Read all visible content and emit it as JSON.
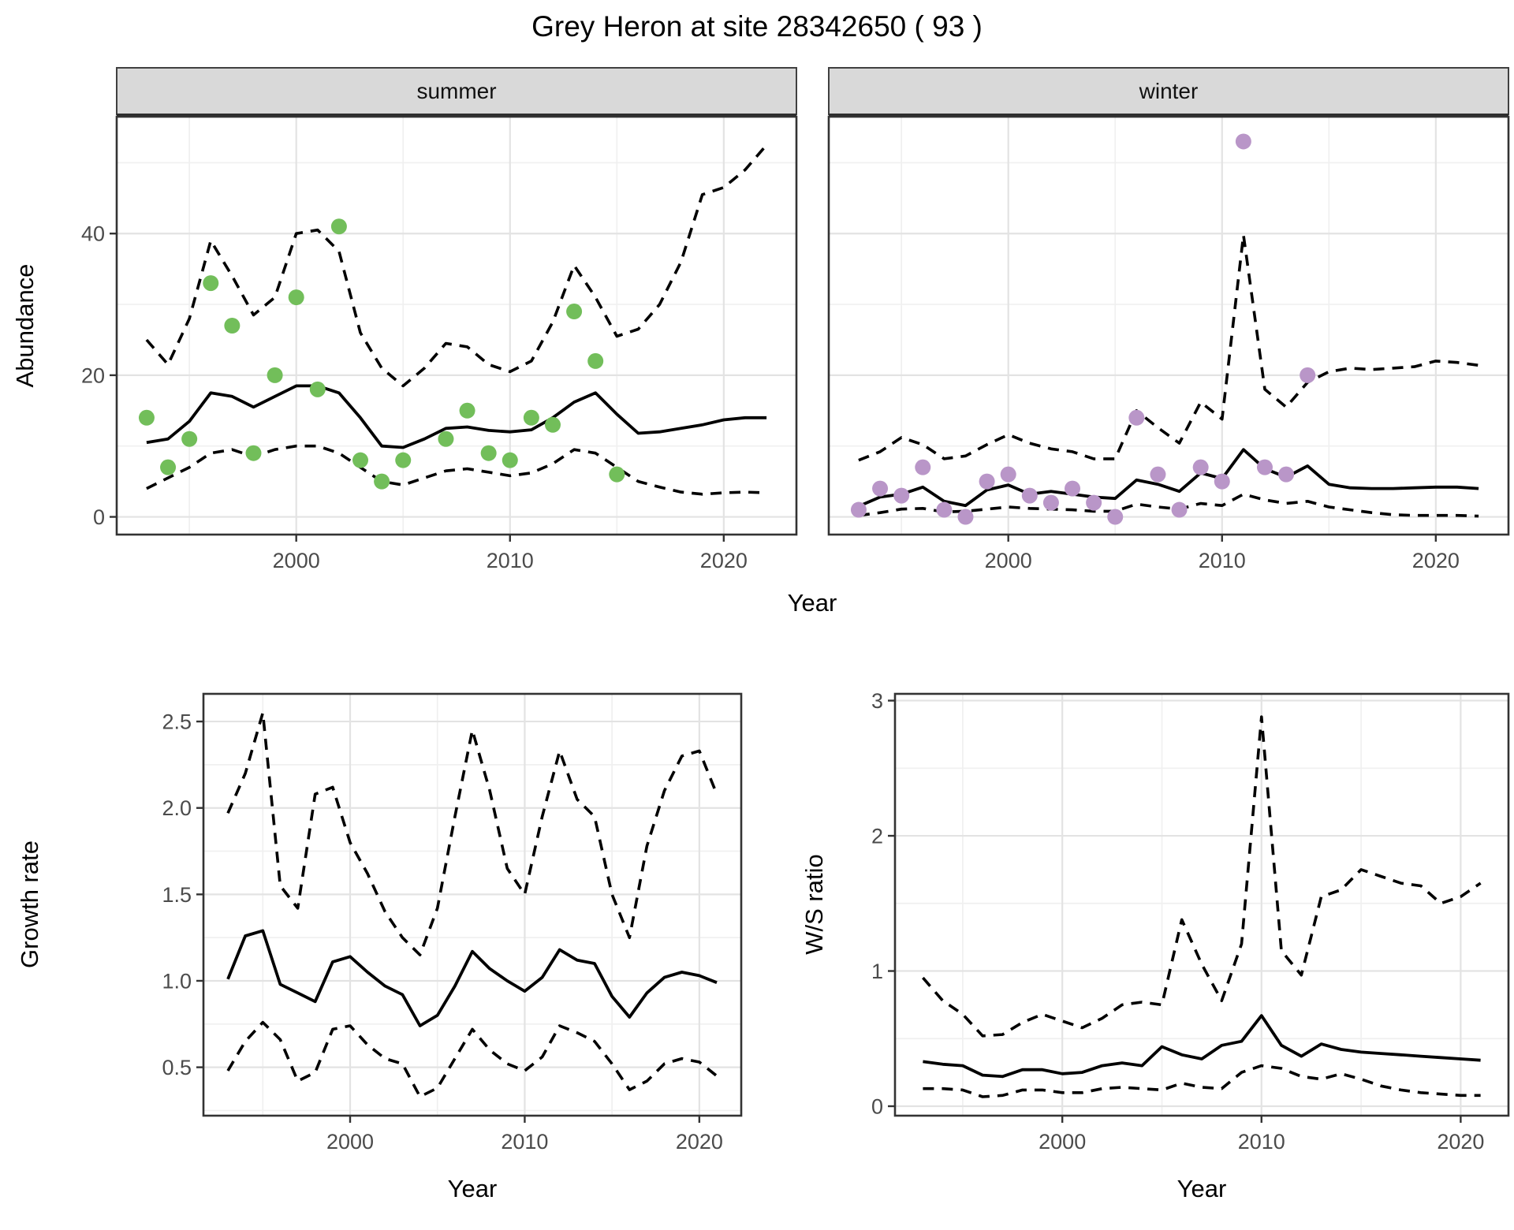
{
  "title": "Grey Heron at site 28342650 ( 93 )",
  "top_row": {
    "ylabel": "Abundance",
    "xlabel": "Year",
    "facets": [
      {
        "label": "summer"
      },
      {
        "label": "winter"
      }
    ]
  },
  "bottom_row": {
    "left": {
      "ylabel": "Growth rate",
      "xlabel": "Year"
    },
    "right": {
      "ylabel": "W/S ratio",
      "xlabel": "Year"
    }
  },
  "colors": {
    "summer_points": "#72BE5A",
    "winter_points": "#B996C8",
    "line": "#000000",
    "strip_bg": "#D9D9D9",
    "panel_border": "#333333",
    "grid_major": "#E3E3E3",
    "grid_minor": "#F0F0F0",
    "tick_text": "#4B4B4B"
  },
  "chart_data": [
    {
      "id": "abundance-summer",
      "type": "line+scatter",
      "facet": "summer",
      "xlim": [
        1991.6,
        2023.4
      ],
      "ylim": [
        -2.5,
        56.5
      ],
      "xticks": [
        2000,
        2010,
        2020
      ],
      "xticks_minor": [
        1995,
        2005,
        2015
      ],
      "yticks": [
        0,
        20,
        40
      ],
      "ytick_labels": [
        "0",
        "20",
        "40"
      ],
      "yticks_minor": [
        10,
        30,
        50
      ],
      "series": [
        {
          "name": "observed",
          "type": "scatter",
          "color": "#72BE5A",
          "years": [
            1993,
            1994,
            1995,
            1996,
            1997,
            1998,
            1999,
            2000,
            2001,
            2002,
            2003,
            2004,
            2005,
            2007,
            2008,
            2009,
            2010,
            2011,
            2012,
            2013,
            2014,
            2015
          ],
          "values": [
            14,
            7,
            11,
            33,
            27,
            9,
            20,
            31,
            18,
            41,
            8,
            5,
            8,
            11,
            15,
            9,
            8,
            14,
            13,
            29,
            22,
            6
          ]
        },
        {
          "name": "fitted",
          "type": "line",
          "style": "solid",
          "year_start": 1993,
          "values": [
            10.5,
            11,
            13.5,
            17.5,
            17,
            15.5,
            17,
            18.5,
            18.5,
            17.5,
            14,
            10,
            9.8,
            11,
            12.5,
            12.7,
            12.2,
            12,
            12.3,
            14,
            16.2,
            17.5,
            14.5,
            11.8,
            12,
            12.5,
            13,
            13.7,
            14,
            14
          ]
        },
        {
          "name": "upper95",
          "type": "line",
          "style": "dashed",
          "year_start": 1993,
          "values": [
            25,
            21.5,
            28,
            39,
            34,
            28.5,
            31,
            40,
            40.5,
            37.5,
            26,
            21,
            18.5,
            21,
            24.5,
            24,
            21.5,
            20.5,
            22,
            27.5,
            35.5,
            31,
            25.5,
            26.5,
            30,
            36,
            45.5,
            46.5,
            49,
            52.5
          ]
        },
        {
          "name": "lower95",
          "type": "line",
          "style": "dashed",
          "year_start": 1993,
          "values": [
            4,
            5.5,
            7,
            9,
            9.5,
            8.5,
            9.5,
            10,
            10,
            9,
            7,
            5,
            4.5,
            5.5,
            6.5,
            6.8,
            6.3,
            5.8,
            6.2,
            7.5,
            9.5,
            9,
            7,
            5,
            4.2,
            3.5,
            3.2,
            3.4,
            3.5,
            3.4
          ]
        }
      ]
    },
    {
      "id": "abundance-winter",
      "type": "line+scatter",
      "facet": "winter",
      "xlim": [
        1991.6,
        2023.4
      ],
      "ylim": [
        -2.5,
        56.5
      ],
      "xticks": [
        2000,
        2010,
        2020
      ],
      "xticks_minor": [
        1995,
        2005,
        2015
      ],
      "yticks": [
        0,
        20,
        40
      ],
      "ytick_labels": [
        "0",
        "20",
        "40"
      ],
      "yticks_minor": [
        10,
        30,
        50
      ],
      "series": [
        {
          "name": "observed",
          "type": "scatter",
          "color": "#B996C8",
          "years": [
            1993,
            1994,
            1995,
            1996,
            1997,
            1998,
            1999,
            2000,
            2001,
            2002,
            2003,
            2004,
            2005,
            2006,
            2007,
            2008,
            2009,
            2010,
            2011,
            2012,
            2013,
            2014
          ],
          "values": [
            1,
            4,
            3,
            7,
            1,
            0,
            5,
            6,
            3,
            2,
            4,
            2,
            0,
            14,
            6,
            1,
            7,
            5,
            53,
            7,
            6,
            20
          ]
        },
        {
          "name": "fitted",
          "type": "line",
          "style": "solid",
          "year_start": 1993,
          "values": [
            1.5,
            2.8,
            3.2,
            4.2,
            2.2,
            1.6,
            3.8,
            4.5,
            3.2,
            3.6,
            3.2,
            2.8,
            2.6,
            5.2,
            4.6,
            3.6,
            6.2,
            5.4,
            9.5,
            6.8,
            5.6,
            7.2,
            4.6,
            4.1,
            4.0,
            4.0,
            4.1,
            4.2,
            4.2,
            4.0
          ]
        },
        {
          "name": "upper95",
          "type": "line",
          "style": "dashed",
          "year_start": 1993,
          "values": [
            8,
            9.2,
            11.2,
            10.2,
            8.2,
            8.6,
            10.2,
            11.6,
            10.4,
            9.6,
            9.2,
            8.2,
            8.2,
            15,
            12.6,
            10.4,
            16.2,
            13.8,
            39.8,
            18,
            15.5,
            19,
            20.5,
            21,
            20.8,
            21,
            21.2,
            22,
            21.8,
            21.4
          ]
        },
        {
          "name": "lower95",
          "type": "line",
          "style": "dashed",
          "year_start": 1993,
          "values": [
            0.2,
            0.6,
            1.1,
            1.2,
            0.7,
            0.8,
            1.1,
            1.4,
            1.2,
            1.1,
            1.0,
            0.8,
            0.8,
            1.8,
            1.4,
            1.1,
            1.9,
            1.6,
            3.2,
            2.4,
            1.9,
            2.2,
            1.4,
            1.0,
            0.6,
            0.3,
            0.2,
            0.2,
            0.2,
            0.1
          ]
        }
      ]
    },
    {
      "id": "growth-rate",
      "type": "line",
      "xlim": [
        1991.6,
        2022.4
      ],
      "ylim": [
        0.22,
        2.66
      ],
      "xticks": [
        2000,
        2010,
        2020
      ],
      "xticks_minor": [
        1995,
        2005,
        2015
      ],
      "yticks": [
        0.5,
        1.0,
        1.5,
        2.0,
        2.5
      ],
      "ytick_labels": [
        "0.5",
        "1.0",
        "1.5",
        "2.0",
        "2.5"
      ],
      "yticks_minor": [
        0.25,
        0.75,
        1.25,
        1.75,
        2.25
      ],
      "series": [
        {
          "name": "fitted",
          "type": "line",
          "style": "solid",
          "year_start": 1993,
          "values": [
            1.01,
            1.26,
            1.29,
            0.98,
            0.93,
            0.88,
            1.11,
            1.14,
            1.05,
            0.97,
            0.92,
            0.74,
            0.8,
            0.97,
            1.17,
            1.07,
            1.0,
            0.94,
            1.02,
            1.18,
            1.12,
            1.1,
            0.91,
            0.79,
            0.93,
            1.02,
            1.05,
            1.03,
            0.99
          ]
        },
        {
          "name": "upper95",
          "type": "line",
          "style": "dashed",
          "year_start": 1993,
          "values": [
            1.97,
            2.2,
            2.55,
            1.55,
            1.42,
            2.08,
            2.12,
            1.8,
            1.62,
            1.4,
            1.25,
            1.15,
            1.42,
            1.95,
            2.45,
            2.1,
            1.65,
            1.5,
            1.95,
            2.33,
            2.05,
            1.95,
            1.5,
            1.25,
            1.78,
            2.1,
            2.3,
            2.33,
            2.08
          ]
        },
        {
          "name": "lower95",
          "type": "line",
          "style": "dashed",
          "year_start": 1993,
          "values": [
            0.48,
            0.65,
            0.76,
            0.66,
            0.42,
            0.47,
            0.72,
            0.74,
            0.63,
            0.55,
            0.52,
            0.33,
            0.38,
            0.55,
            0.72,
            0.6,
            0.52,
            0.48,
            0.56,
            0.74,
            0.7,
            0.65,
            0.52,
            0.37,
            0.42,
            0.52,
            0.55,
            0.53,
            0.45
          ]
        }
      ]
    },
    {
      "id": "ws-ratio",
      "type": "line",
      "xlim": [
        1991.6,
        2022.4
      ],
      "ylim": [
        -0.07,
        3.05
      ],
      "xticks": [
        2000,
        2010,
        2020
      ],
      "xticks_minor": [
        1995,
        2005,
        2015
      ],
      "yticks": [
        0,
        1,
        2,
        3
      ],
      "ytick_labels": [
        "0",
        "1",
        "2",
        "3"
      ],
      "yticks_minor": [
        0.5,
        1.5,
        2.5
      ],
      "series": [
        {
          "name": "fitted",
          "type": "line",
          "style": "solid",
          "year_start": 1993,
          "values": [
            0.33,
            0.31,
            0.3,
            0.23,
            0.22,
            0.27,
            0.27,
            0.24,
            0.25,
            0.3,
            0.32,
            0.3,
            0.44,
            0.38,
            0.35,
            0.45,
            0.48,
            0.67,
            0.45,
            0.37,
            0.46,
            0.42,
            0.4,
            0.39,
            0.38,
            0.37,
            0.36,
            0.35,
            0.34
          ]
        },
        {
          "name": "upper95",
          "type": "line",
          "style": "dashed",
          "year_start": 1993,
          "values": [
            0.95,
            0.78,
            0.68,
            0.52,
            0.53,
            0.62,
            0.68,
            0.63,
            0.58,
            0.65,
            0.75,
            0.77,
            0.75,
            1.38,
            1.05,
            0.78,
            1.2,
            2.88,
            1.15,
            0.97,
            1.55,
            1.6,
            1.75,
            1.7,
            1.65,
            1.63,
            1.5,
            1.55,
            1.65
          ]
        },
        {
          "name": "lower95",
          "type": "line",
          "style": "dashed",
          "year_start": 1993,
          "values": [
            0.13,
            0.13,
            0.12,
            0.07,
            0.08,
            0.12,
            0.12,
            0.1,
            0.1,
            0.13,
            0.14,
            0.13,
            0.12,
            0.17,
            0.14,
            0.13,
            0.25,
            0.3,
            0.28,
            0.22,
            0.2,
            0.24,
            0.2,
            0.15,
            0.12,
            0.1,
            0.09,
            0.08,
            0.08
          ]
        }
      ]
    }
  ]
}
